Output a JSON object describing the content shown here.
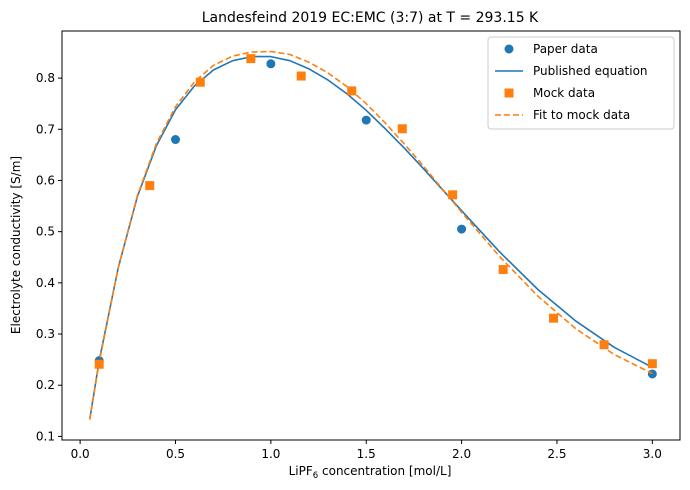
{
  "chart_data": {
    "type": "scatter",
    "title": "Landesfeind 2019 EC:EMC (3:7) at T = 293.15 K",
    "xlabel_prefix": "LiPF",
    "xlabel_sub": "6",
    "xlabel_suffix": " concentration [mol/L]",
    "ylabel": "Electrolyte conductivity [S/m]",
    "xlim": [
      -0.095,
      3.145
    ],
    "ylim": [
      0.093,
      0.892
    ],
    "xticks": [
      0.0,
      0.5,
      1.0,
      1.5,
      2.0,
      2.5,
      3.0
    ],
    "xtick_labels": [
      "0.0",
      "0.5",
      "1.0",
      "1.5",
      "2.0",
      "2.5",
      "3.0"
    ],
    "yticks": [
      0.1,
      0.2,
      0.3,
      0.4,
      0.5,
      0.6,
      0.7,
      0.8
    ],
    "ytick_labels": [
      "0.1",
      "0.2",
      "0.3",
      "0.4",
      "0.5",
      "0.6",
      "0.7",
      "0.8"
    ],
    "grid": false,
    "legend_position": "top-right",
    "series": [
      {
        "name": "Paper data",
        "kind": "scatter",
        "marker": "circle",
        "color": "#1f77b4",
        "x": [
          0.1,
          0.5,
          1.0,
          1.5,
          2.0,
          3.0
        ],
        "y": [
          0.248,
          0.68,
          0.828,
          0.718,
          0.505,
          0.222
        ]
      },
      {
        "name": "Published equation",
        "kind": "line",
        "dash": "solid",
        "color": "#1f77b4",
        "x": [
          0.05,
          0.1,
          0.2,
          0.3,
          0.4,
          0.5,
          0.6,
          0.7,
          0.8,
          0.9,
          1.0,
          1.1,
          1.2,
          1.3,
          1.4,
          1.5,
          1.6,
          1.7,
          1.8,
          1.9,
          2.0,
          2.2,
          2.4,
          2.6,
          2.8,
          3.0
        ],
        "y": [
          0.133,
          0.248,
          0.43,
          0.568,
          0.668,
          0.738,
          0.785,
          0.816,
          0.834,
          0.842,
          0.842,
          0.834,
          0.818,
          0.796,
          0.769,
          0.737,
          0.701,
          0.663,
          0.623,
          0.582,
          0.541,
          0.46,
          0.387,
          0.325,
          0.274,
          0.235
        ]
      },
      {
        "name": "Mock data",
        "kind": "scatter",
        "marker": "square",
        "color": "#ff7f0e",
        "x": [
          0.1,
          0.365,
          0.63,
          0.895,
          1.159,
          1.424,
          1.689,
          1.953,
          2.218,
          2.482,
          2.747,
          3.0
        ],
        "y": [
          0.241,
          0.59,
          0.792,
          0.838,
          0.804,
          0.775,
          0.701,
          0.572,
          0.426,
          0.331,
          0.279,
          0.242
        ]
      },
      {
        "name": "Fit to mock data",
        "kind": "line",
        "dash": "dashed",
        "color": "#ff7f0e",
        "x": [
          0.05,
          0.1,
          0.2,
          0.3,
          0.4,
          0.5,
          0.6,
          0.7,
          0.8,
          0.9,
          1.0,
          1.1,
          1.2,
          1.3,
          1.4,
          1.5,
          1.6,
          1.7,
          1.8,
          1.9,
          2.0,
          2.2,
          2.4,
          2.6,
          2.8,
          3.0
        ],
        "y": [
          0.133,
          0.245,
          0.43,
          0.57,
          0.672,
          0.744,
          0.793,
          0.825,
          0.843,
          0.851,
          0.852,
          0.846,
          0.831,
          0.81,
          0.783,
          0.75,
          0.712,
          0.671,
          0.628,
          0.583,
          0.538,
          0.451,
          0.374,
          0.31,
          0.26,
          0.223
        ]
      }
    ]
  }
}
